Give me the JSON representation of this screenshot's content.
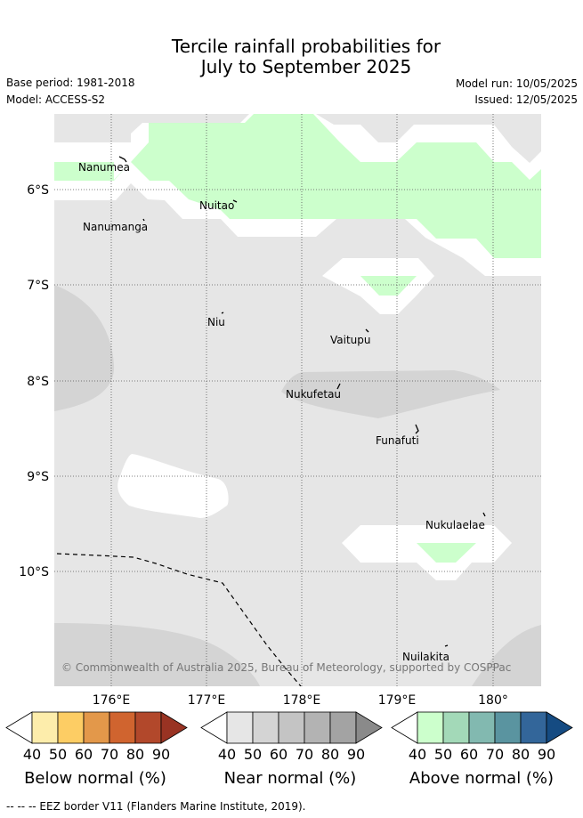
{
  "title_line1": "Tercile rainfall probabilities for",
  "title_line2": "July to September 2025",
  "base_period": "Base period: 1981-2018",
  "model": "Model: ACCESS-S2",
  "model_run": "Model run: 10/05/2025",
  "issued": "Issued: 12/05/2025",
  "copyright": "© Commonwealth of Australia 2025, Bureau of Meteorology, supported by COSPPac",
  "footnote": "--  --  -- EEZ border V11 (Flanders Marine Institute, 2019).",
  "map": {
    "lon_labels": [
      "176°E",
      "177°E",
      "178°E",
      "179°E",
      "180°"
    ],
    "lat_labels": [
      "6°S",
      "7°S",
      "8°S",
      "9°S",
      "10°S"
    ],
    "islands": [
      "Nanumea",
      "Nuitao",
      "Nanumanga",
      "Niu",
      "Vaitupu",
      "Nukufetau",
      "Funafuti",
      "Nukulaelae",
      "Nuilakita"
    ]
  },
  "colorbars": [
    {
      "title": "Below normal (%)",
      "ticks": [
        "40",
        "50",
        "60",
        "70",
        "80",
        "90"
      ],
      "colors": [
        "#ffffff",
        "#fdedab",
        "#fdcd64",
        "#e3984a",
        "#d0642f",
        "#b2482b",
        "#993323"
      ]
    },
    {
      "title": "Near normal (%)",
      "ticks": [
        "40",
        "50",
        "60",
        "70",
        "80",
        "90"
      ],
      "colors": [
        "#ffffff",
        "#e6e6e6",
        "#d4d4d4",
        "#c4c4c4",
        "#b3b3b3",
        "#a3a3a3",
        "#8a8a8a"
      ]
    },
    {
      "title": "Above normal (%)",
      "ticks": [
        "40",
        "50",
        "60",
        "70",
        "80",
        "90"
      ],
      "colors": [
        "#ffffff",
        "#ccffcc",
        "#a3d9b8",
        "#82b9b0",
        "#5a94a0",
        "#33669a",
        "#154b82"
      ]
    }
  ]
}
